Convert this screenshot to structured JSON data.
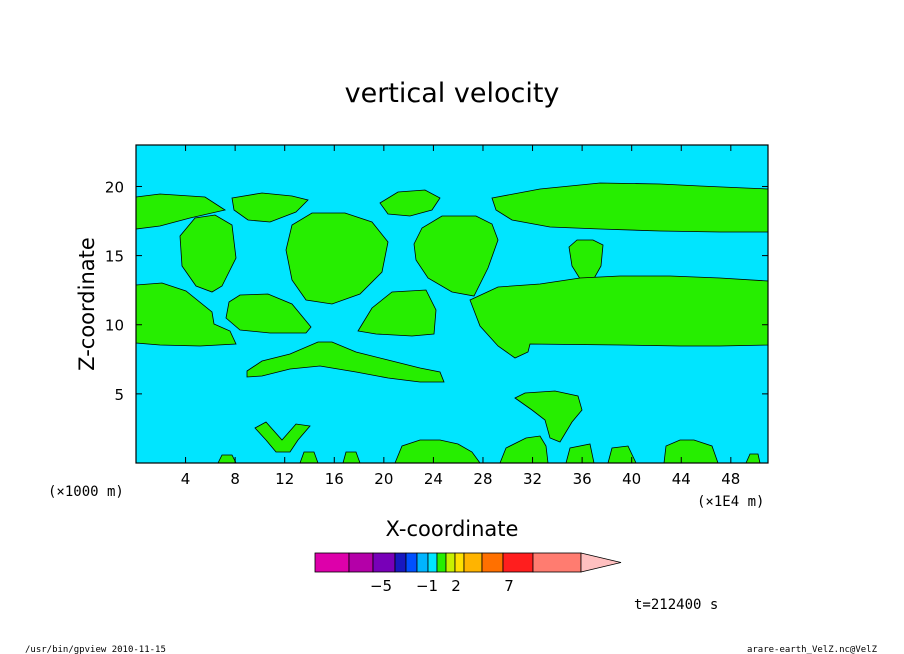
{
  "chart_data": {
    "type": "heatmap",
    "title": "vertical velocity",
    "xlabel": "X-coordinate",
    "ylabel": "Z-coordinate",
    "x_unit_label": "(×1000 m)",
    "x_extra_unit_label": "(×1E4 m)",
    "xlim": [
      0,
      51
    ],
    "ylim": [
      0,
      23
    ],
    "x_ticks": [
      "4",
      "8",
      "12",
      "16",
      "20",
      "24",
      "28",
      "32",
      "36",
      "40",
      "44",
      "48"
    ],
    "x_tick_values": [
      4,
      8,
      12,
      16,
      20,
      24,
      28,
      32,
      36,
      40,
      44,
      48
    ],
    "y_ticks": [
      "5",
      "10",
      "15",
      "20"
    ],
    "y_tick_values": [
      5,
      10,
      15,
      20
    ],
    "grid": false,
    "field_levels": [
      {
        "name": "background",
        "color": "#00e5ff"
      },
      {
        "name": "positive region",
        "color": "#26ee00"
      }
    ],
    "colorbar": {
      "colors": [
        "#dd00aa",
        "#b400a8",
        "#7800b8",
        "#1818c0",
        "#0050ff",
        "#00b4ff",
        "#00e5ff",
        "#26ee00",
        "#c8f000",
        "#ffe000",
        "#ffb400",
        "#ff7000",
        "#ff1e1e",
        "#ff7c70",
        "#ffc0c0"
      ],
      "tick_labels": [
        "−5",
        "−1",
        "2",
        "7"
      ]
    },
    "time_label": "t=212400 s"
  },
  "footer": {
    "left": "/usr/bin/gpview   2010-11-15",
    "right": "arare-earth_VelZ.nc@VelZ"
  }
}
